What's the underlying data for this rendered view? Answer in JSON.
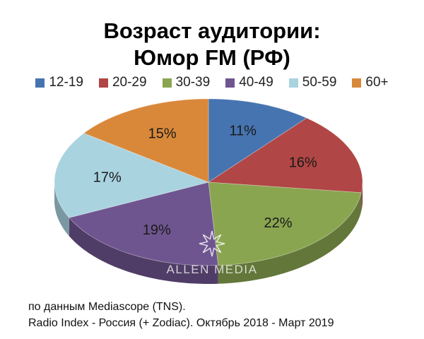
{
  "chart_data": {
    "type": "pie",
    "title_line1": "Возраст аудитории:",
    "title_line2": "Юмор FM (РФ)",
    "categories": [
      "12-19",
      "20-29",
      "30-39",
      "40-49",
      "50-59",
      "60+"
    ],
    "values": [
      11,
      16,
      22,
      19,
      17,
      15
    ],
    "value_labels": [
      "11%",
      "16%",
      "22%",
      "19%",
      "17%",
      "15%"
    ],
    "colors": [
      "#4674b0",
      "#b04645",
      "#8aa550",
      "#6f558f",
      "#aad3e0",
      "#d9883a"
    ],
    "legend_position": "top",
    "style": "3d-tilted"
  },
  "watermark": "ALLEN MEDIA",
  "source_line1": "по данным Mediascope (TNS).",
  "source_line2": "Radio Index - Россия (+ Zodiac). Октябрь 2018 - Март 2019"
}
